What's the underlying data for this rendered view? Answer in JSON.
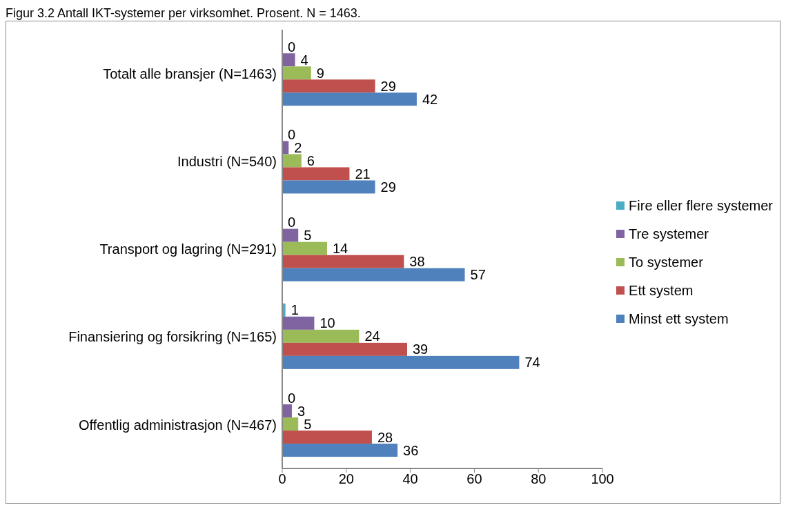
{
  "chart_data": {
    "type": "bar",
    "orientation": "horizontal",
    "title": "Figur 3.2 Antall IKT-systemer per virksomhet. Prosent. N = 1463.",
    "categories": [
      "Totalt alle bransjer (N=1463)",
      "Industri (N=540)",
      "Transport og lagring (N=291)",
      "Finansiering og forsikring (N=165)",
      "Offentlig administrasjon (N=467)"
    ],
    "series": [
      {
        "name": "Fire eller flere systemer",
        "color": "#4bacc6",
        "values": [
          0,
          0,
          0,
          1,
          0
        ]
      },
      {
        "name": "Tre systemer",
        "color": "#8064a2",
        "values": [
          4,
          2,
          5,
          10,
          3
        ]
      },
      {
        "name": "To systemer",
        "color": "#9bbb59",
        "values": [
          9,
          6,
          14,
          24,
          5
        ]
      },
      {
        "name": "Ett system",
        "color": "#c0504d",
        "values": [
          29,
          21,
          38,
          39,
          28
        ]
      },
      {
        "name": "Minst ett system",
        "color": "#4f81bd",
        "values": [
          42,
          29,
          57,
          74,
          36
        ]
      }
    ],
    "xlim": [
      0,
      100
    ],
    "xticks": [
      0,
      20,
      40,
      60,
      80,
      100
    ],
    "grid": false,
    "legend": "right",
    "data_labels": true
  }
}
